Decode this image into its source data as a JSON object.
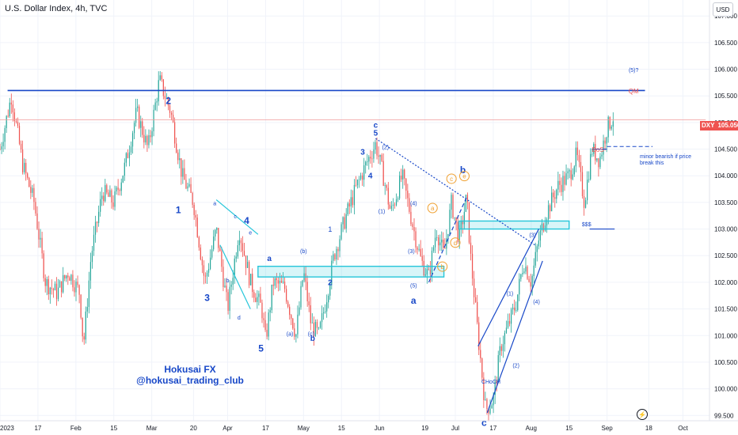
{
  "header": {
    "title": "U.S. Dollar Index, 4h, TVC",
    "currency_button": "USD"
  },
  "price_tag": {
    "ticker": "DXY",
    "price": "105.056"
  },
  "watermark": {
    "line1": "Hokusai FX",
    "line2": "@hokusai_trading_club"
  },
  "annotation_note": "minor bearish if price break this",
  "flash_icon": "lightning-icon",
  "colors": {
    "up": "#26a69a",
    "down": "#ef5350",
    "wave": "#1848c8",
    "zone": "#26c6da",
    "orange": "#f0a030",
    "red_label": "#ef5350"
  },
  "chart_data": {
    "type": "candlestick",
    "symbol": "DXY",
    "timeframe": "4h",
    "ylim": [
      99.4,
      107.3
    ],
    "y_ticks": [
      "107.000",
      "106.500",
      "106.000",
      "105.500",
      "105.000",
      "104.500",
      "104.000",
      "103.500",
      "103.000",
      "102.500",
      "102.000",
      "101.500",
      "101.000",
      "100.500",
      "100.000",
      "99.500"
    ],
    "x_ticks": [
      {
        "label": "2023",
        "x": 0
      },
      {
        "label": "17",
        "x": 0.5
      },
      {
        "label": "Feb",
        "x": 1.0
      },
      {
        "label": "15",
        "x": 1.5
      },
      {
        "label": "Mar",
        "x": 2.0
      },
      {
        "label": "20",
        "x": 2.55
      },
      {
        "label": "Apr",
        "x": 3.0
      },
      {
        "label": "17",
        "x": 3.5
      },
      {
        "label": "May",
        "x": 4.0
      },
      {
        "label": "15",
        "x": 4.5
      },
      {
        "label": "Jun",
        "x": 5.0
      },
      {
        "label": "19",
        "x": 5.6
      },
      {
        "label": "Jul",
        "x": 6.0
      },
      {
        "label": "17",
        "x": 6.5
      },
      {
        "label": "Aug",
        "x": 7.0
      },
      {
        "label": "15",
        "x": 7.5
      },
      {
        "label": "Sep",
        "x": 8.0
      },
      {
        "label": "18",
        "x": 8.55
      },
      {
        "label": "Oct",
        "x": 9.0
      }
    ],
    "price_path": [
      [
        0.0,
        104.5
      ],
      [
        0.15,
        105.5
      ],
      [
        0.3,
        104.2
      ],
      [
        0.45,
        103.5
      ],
      [
        0.6,
        102.0
      ],
      [
        0.75,
        101.8
      ],
      [
        0.9,
        102.2
      ],
      [
        1.05,
        101.8
      ],
      [
        1.1,
        100.8
      ],
      [
        1.2,
        102.5
      ],
      [
        1.35,
        103.7
      ],
      [
        1.5,
        103.5
      ],
      [
        1.65,
        104.2
      ],
      [
        1.8,
        105.2
      ],
      [
        1.95,
        104.5
      ],
      [
        2.1,
        105.8
      ],
      [
        2.25,
        105.2
      ],
      [
        2.4,
        104.0
      ],
      [
        2.55,
        103.5
      ],
      [
        2.7,
        102.0
      ],
      [
        2.85,
        103.0
      ],
      [
        3.0,
        101.5
      ],
      [
        3.15,
        103.0
      ],
      [
        3.3,
        102.0
      ],
      [
        3.45,
        101.5
      ],
      [
        3.5,
        100.9
      ],
      [
        3.6,
        102.0
      ],
      [
        3.75,
        101.9
      ],
      [
        3.9,
        101.0
      ],
      [
        4.0,
        102.2
      ],
      [
        4.1,
        101.2
      ],
      [
        4.2,
        101.0
      ],
      [
        4.3,
        101.7
      ],
      [
        4.4,
        102.5
      ],
      [
        4.55,
        103.2
      ],
      [
        4.7,
        103.8
      ],
      [
        4.85,
        104.3
      ],
      [
        4.95,
        104.6
      ],
      [
        5.05,
        104.0
      ],
      [
        5.15,
        103.3
      ],
      [
        5.3,
        104.0
      ],
      [
        5.45,
        103.0
      ],
      [
        5.55,
        102.4
      ],
      [
        5.65,
        102.1
      ],
      [
        5.75,
        103.0
      ],
      [
        5.85,
        102.5
      ],
      [
        5.95,
        103.5
      ],
      [
        6.05,
        102.8
      ],
      [
        6.15,
        103.6
      ],
      [
        6.2,
        102.5
      ],
      [
        6.3,
        101.0
      ],
      [
        6.4,
        99.6
      ],
      [
        6.5,
        99.8
      ],
      [
        6.6,
        100.8
      ],
      [
        6.7,
        101.2
      ],
      [
        6.8,
        101.6
      ],
      [
        6.9,
        102.4
      ],
      [
        7.0,
        102.0
      ],
      [
        7.1,
        102.8
      ],
      [
        7.2,
        103.3
      ],
      [
        7.35,
        103.8
      ],
      [
        7.5,
        104.0
      ],
      [
        7.6,
        104.4
      ],
      [
        7.7,
        103.5
      ],
      [
        7.8,
        104.5
      ],
      [
        7.9,
        104.3
      ],
      [
        8.0,
        104.9
      ],
      [
        8.08,
        105.1
      ]
    ],
    "key_levels": [
      {
        "name": "horizontal-resistance",
        "y": 105.6,
        "x_from": 0.1,
        "x_to": 8.5
      },
      {
        "name": "current-price-line",
        "y": 105.05,
        "x_from": 0.0,
        "x_to": 9.3
      },
      {
        "name": "minor-bearish-level",
        "y": 104.55,
        "x_from": 8.0,
        "x_to": 8.6
      }
    ],
    "zones": [
      {
        "name": "zone-may",
        "y_top": 102.3,
        "y_bottom": 102.1,
        "x_from": 3.4,
        "x_to": 5.85
      },
      {
        "name": "zone-jul",
        "y_top": 103.15,
        "y_bottom": 103.0,
        "x_from": 6.05,
        "x_to": 7.5
      }
    ],
    "wave_labels": [
      {
        "text": "2",
        "x": 2.22,
        "y": 105.35,
        "size": "lg"
      },
      {
        "text": "1",
        "x": 2.35,
        "y": 103.3,
        "size": "lg"
      },
      {
        "text": "3",
        "x": 2.73,
        "y": 101.65,
        "size": "lg"
      },
      {
        "text": "4",
        "x": 3.25,
        "y": 103.1,
        "size": "lg"
      },
      {
        "text": "5",
        "x": 3.44,
        "y": 100.7,
        "size": "lg"
      },
      {
        "text": "a",
        "x": 3.55,
        "y": 102.4,
        "size": "md"
      },
      {
        "text": "b",
        "x": 4.12,
        "y": 100.9,
        "size": "md"
      },
      {
        "text": "2",
        "x": 4.35,
        "y": 101.95,
        "size": "md"
      },
      {
        "text": "1",
        "x": 4.35,
        "y": 102.95,
        "size": "sm"
      },
      {
        "text": "(b)",
        "x": 4.0,
        "y": 102.55,
        "size": "xs"
      },
      {
        "text": "(a)",
        "x": 3.82,
        "y": 101.0,
        "size": "xs"
      },
      {
        "text": "(c)",
        "x": 4.1,
        "y": 101.0,
        "size": "xs"
      },
      {
        "text": "a",
        "x": 2.83,
        "y": 103.45,
        "size": "xs"
      },
      {
        "text": "b",
        "x": 3.0,
        "y": 102.0,
        "size": "xs"
      },
      {
        "text": "c",
        "x": 3.1,
        "y": 103.2,
        "size": "xs"
      },
      {
        "text": "d",
        "x": 3.15,
        "y": 101.3,
        "size": "xs"
      },
      {
        "text": "e",
        "x": 3.3,
        "y": 102.9,
        "size": "xs"
      },
      {
        "text": "c",
        "x": 4.95,
        "y": 104.9,
        "size": "md"
      },
      {
        "text": "5",
        "x": 4.95,
        "y": 104.75,
        "size": "md"
      },
      {
        "text": "3",
        "x": 4.78,
        "y": 104.4,
        "size": "md"
      },
      {
        "text": "4",
        "x": 4.88,
        "y": 103.95,
        "size": "md"
      },
      {
        "text": "(2)",
        "x": 5.08,
        "y": 104.5,
        "size": "xs"
      },
      {
        "text": "(1)",
        "x": 5.03,
        "y": 103.3,
        "size": "xs"
      },
      {
        "text": "(4)",
        "x": 5.45,
        "y": 103.45,
        "size": "xs"
      },
      {
        "text": "(3)",
        "x": 5.42,
        "y": 102.55,
        "size": "xs"
      },
      {
        "text": "(5)",
        "x": 5.45,
        "y": 101.9,
        "size": "xs"
      },
      {
        "text": "a",
        "x": 5.45,
        "y": 101.6,
        "size": "lg"
      },
      {
        "text": "b",
        "x": 6.1,
        "y": 104.05,
        "size": "lg"
      },
      {
        "text": "c",
        "x": 6.38,
        "y": 99.3,
        "size": "lg"
      },
      {
        "text": "(1)",
        "x": 6.72,
        "y": 101.75,
        "size": "xs"
      },
      {
        "text": "(2)",
        "x": 6.8,
        "y": 100.4,
        "size": "xs"
      },
      {
        "text": "(3)",
        "x": 7.02,
        "y": 102.85,
        "size": "xs"
      },
      {
        "text": "(4)",
        "x": 7.07,
        "y": 101.6,
        "size": "xs"
      },
      {
        "text": "(5)?",
        "x": 8.35,
        "y": 105.95,
        "size": "xs"
      },
      {
        "text": "CHoCH",
        "x": 6.47,
        "y": 100.1,
        "size": "xs"
      },
      {
        "text": "$$$",
        "x": 7.73,
        "y": 103.05,
        "size": "xs"
      }
    ],
    "orange_labels": [
      {
        "text": "a",
        "x": 5.7,
        "y": 103.35
      },
      {
        "text": "b",
        "x": 5.83,
        "y": 102.25
      },
      {
        "text": "c",
        "x": 5.95,
        "y": 103.9
      },
      {
        "text": "d",
        "x": 6.0,
        "y": 102.7
      },
      {
        "text": "e",
        "x": 6.12,
        "y": 103.95
      }
    ],
    "red_labels": [
      {
        "text": "QM",
        "x": 8.35,
        "y": 105.55
      },
      {
        "text": "BoS",
        "x": 7.88,
        "y": 104.45
      }
    ]
  }
}
